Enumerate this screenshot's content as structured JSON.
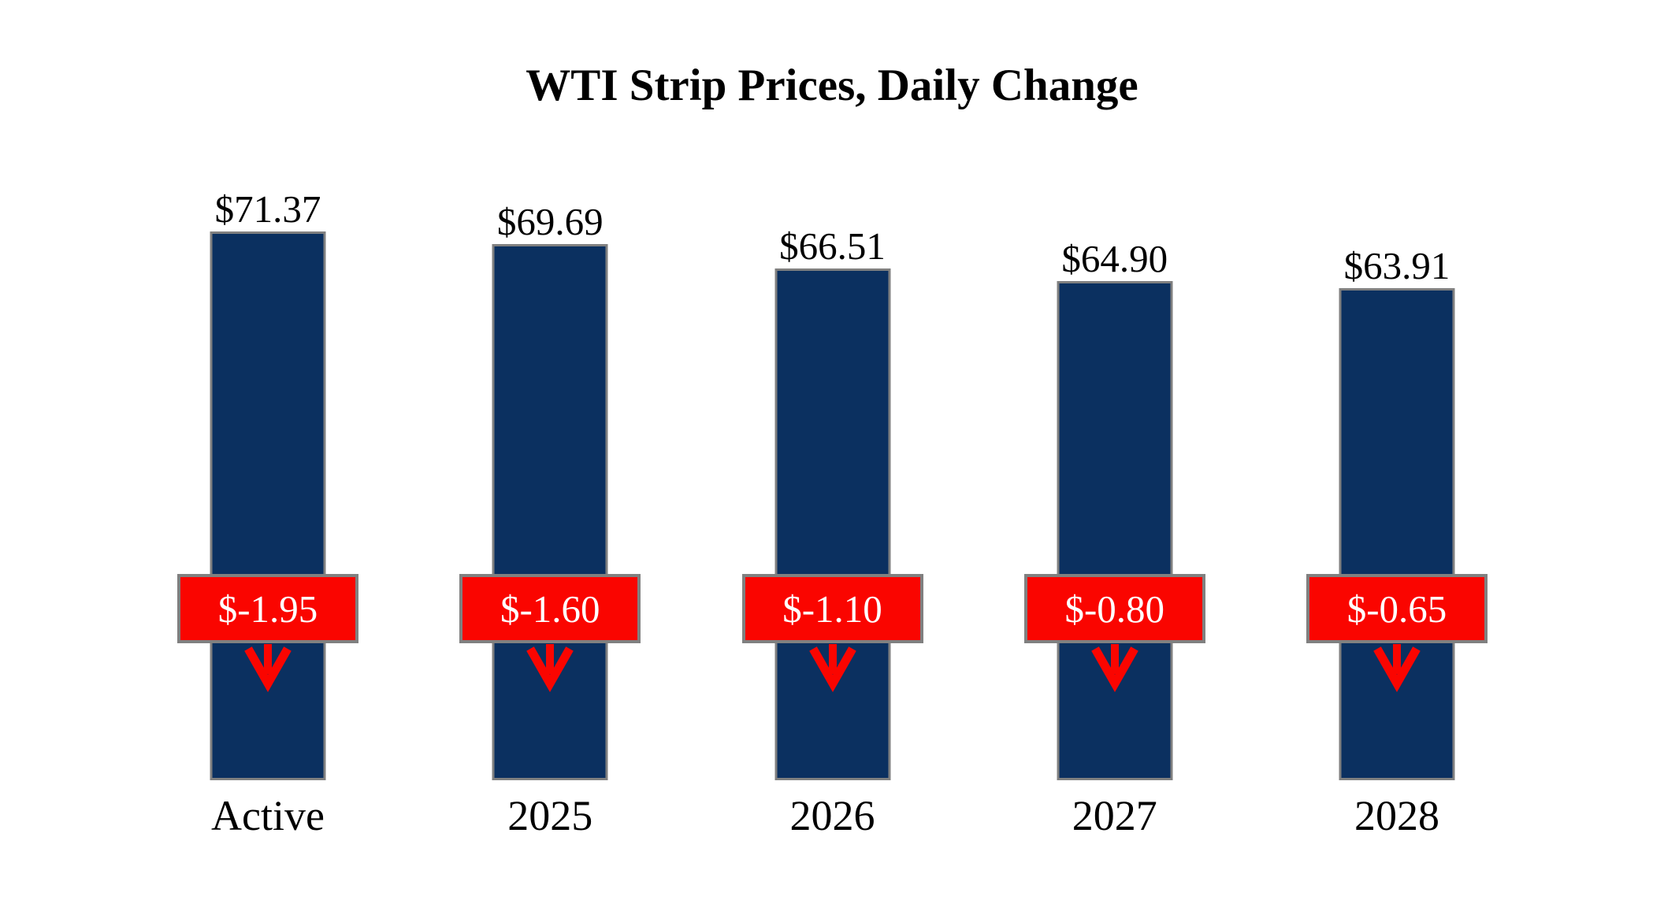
{
  "title": "WTI Strip Prices, Daily Change",
  "chart_data": {
    "type": "bar",
    "title": "WTI Strip Prices, Daily Change",
    "categories": [
      "Active",
      "2025",
      "2026",
      "2027",
      "2028"
    ],
    "series": [
      {
        "name": "Strip Price",
        "values": [
          71.37,
          69.69,
          66.51,
          64.9,
          63.91
        ],
        "labels": [
          "$71.37",
          "$69.69",
          "$66.51",
          "$64.90",
          "$63.91"
        ]
      },
      {
        "name": "Daily Change",
        "values": [
          -1.95,
          -1.6,
          -1.1,
          -0.8,
          -0.65
        ],
        "labels": [
          "$-1.95",
          "$-1.60",
          "$-1.10",
          "$-0.80",
          "$-0.65"
        ]
      }
    ],
    "xlabel": "",
    "ylabel": "",
    "ylim": [
      0,
      75
    ],
    "grid": false,
    "legend": false,
    "colors": {
      "bar": "#0b3060",
      "bar_border": "#808080",
      "change_badge": "#fa0500",
      "badge_border": "#808080",
      "badge_text": "#ffffff",
      "label_text": "#000000"
    }
  }
}
